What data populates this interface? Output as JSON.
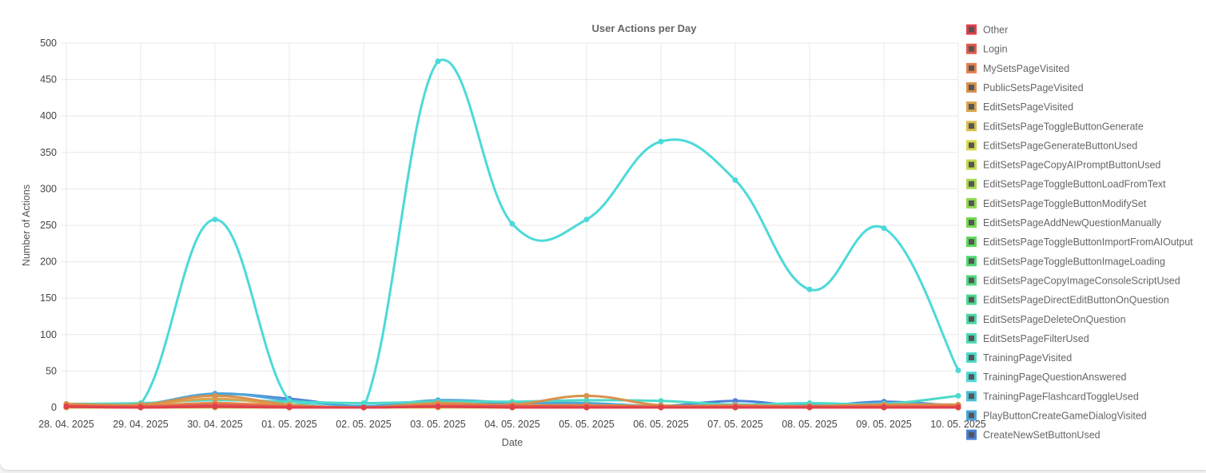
{
  "chart_data": {
    "type": "line",
    "title": "User Actions per Day",
    "xlabel": "Date",
    "ylabel": "Number of Actions",
    "ylim": [
      0,
      500
    ],
    "y_ticks": [
      0,
      50,
      100,
      150,
      200,
      250,
      300,
      350,
      400,
      450,
      500
    ],
    "grid": true,
    "legend_position": "right",
    "categories": [
      "28. 04. 2025",
      "29. 04. 2025",
      "30. 04. 2025",
      "01. 05. 2025",
      "02. 05. 2025",
      "03. 05. 2025",
      "04. 05. 2025",
      "05. 05. 2025",
      "06. 05. 2025",
      "07. 05. 2025",
      "08. 05. 2025",
      "09. 05. 2025",
      "10. 05. 2025"
    ],
    "series": [
      {
        "name": "Other",
        "color": "#e0404a",
        "values": [
          1,
          0,
          1,
          0,
          0,
          1,
          0,
          0,
          0,
          0,
          0,
          0,
          0
        ]
      },
      {
        "name": "Login",
        "color": "#e05a4a",
        "values": [
          2,
          1,
          3,
          1,
          0,
          2,
          2,
          1,
          1,
          1,
          1,
          1,
          1
        ]
      },
      {
        "name": "MySetsPageVisited",
        "color": "#e5804a",
        "values": [
          3,
          2,
          6,
          2,
          0,
          3,
          2,
          3,
          1,
          2,
          1,
          2,
          2
        ]
      },
      {
        "name": "PublicSetsPageVisited",
        "color": "#d9914d",
        "values": [
          5,
          4,
          16,
          4,
          0,
          6,
          4,
          16,
          3,
          3,
          2,
          4,
          4
        ]
      },
      {
        "name": "EditSetsPageVisited",
        "color": "#d9a34d",
        "values": [
          4,
          3,
          12,
          3,
          0,
          4,
          3,
          3,
          2,
          2,
          1,
          3,
          2
        ]
      },
      {
        "name": "EditSetsPageToggleButtonGenerate",
        "color": "#d9c04d",
        "values": [
          0,
          0,
          1,
          0,
          0,
          1,
          0,
          0,
          0,
          0,
          0,
          0,
          0
        ]
      },
      {
        "name": "EditSetsPageGenerateButtonUsed",
        "color": "#d9d94d",
        "values": [
          0,
          0,
          1,
          0,
          0,
          0,
          0,
          0,
          0,
          0,
          0,
          0,
          0
        ]
      },
      {
        "name": "EditSetsPageCopyAIPromptButtonUsed",
        "color": "#c0d94d",
        "values": [
          0,
          0,
          0,
          0,
          0,
          1,
          0,
          0,
          0,
          0,
          0,
          0,
          0
        ]
      },
      {
        "name": "EditSetsPageToggleButtonLoadFromText",
        "color": "#a8d94d",
        "values": [
          0,
          0,
          1,
          0,
          0,
          0,
          0,
          0,
          0,
          0,
          0,
          0,
          0
        ]
      },
      {
        "name": "EditSetsPageToggleButtonModifySet",
        "color": "#8fd94d",
        "values": [
          0,
          0,
          1,
          0,
          0,
          1,
          0,
          0,
          0,
          0,
          0,
          0,
          0
        ]
      },
      {
        "name": "EditSetsPageAddNewQuestionManually",
        "color": "#6fd94d",
        "values": [
          1,
          0,
          3,
          1,
          0,
          2,
          1,
          1,
          0,
          1,
          0,
          1,
          0
        ]
      },
      {
        "name": "EditSetsPageToggleButtonImportFromAIOutput",
        "color": "#5ad95a",
        "values": [
          0,
          0,
          1,
          0,
          0,
          0,
          0,
          0,
          0,
          0,
          0,
          0,
          0
        ]
      },
      {
        "name": "EditSetsPageToggleButtonImageLoading",
        "color": "#4dd96f",
        "values": [
          0,
          0,
          0,
          0,
          0,
          0,
          0,
          0,
          0,
          0,
          0,
          0,
          0
        ]
      },
      {
        "name": "EditSetsPageCopyImageConsoleScriptUsed",
        "color": "#4dd97f",
        "values": [
          0,
          0,
          0,
          0,
          0,
          0,
          0,
          0,
          0,
          0,
          0,
          0,
          0
        ]
      },
      {
        "name": "EditSetsPageDirectEditButtonOnQuestion",
        "color": "#4dd990",
        "values": [
          1,
          0,
          2,
          1,
          0,
          2,
          1,
          1,
          1,
          1,
          0,
          1,
          0
        ]
      },
      {
        "name": "EditSetsPageDeleteOnQuestion",
        "color": "#4dd9a3",
        "values": [
          0,
          0,
          1,
          0,
          0,
          1,
          0,
          0,
          0,
          0,
          0,
          0,
          0
        ]
      },
      {
        "name": "EditSetsPageFilterUsed",
        "color": "#4dd9b5",
        "values": [
          0,
          0,
          1,
          0,
          0,
          0,
          0,
          0,
          0,
          0,
          0,
          0,
          0
        ]
      },
      {
        "name": "TrainingPageVisited",
        "color": "#4dd9c8",
        "values": [
          5,
          6,
          10,
          8,
          6,
          8,
          8,
          10,
          9,
          4,
          6,
          5,
          16
        ]
      },
      {
        "name": "TrainingPageQuestionAnswered",
        "color": "#4dd9d9",
        "values": [
          4,
          5,
          258,
          9,
          0,
          475,
          252,
          258,
          365,
          312,
          162,
          246,
          51
        ]
      },
      {
        "name": "TrainingPageFlashcardToggleUsed",
        "color": "#4dbfd9",
        "values": [
          1,
          1,
          2,
          1,
          0,
          2,
          1,
          1,
          1,
          1,
          1,
          1,
          1
        ]
      },
      {
        "name": "PlayButtonCreateGameDialogVisited",
        "color": "#4da6d9",
        "values": [
          3,
          4,
          19,
          10,
          2,
          10,
          7,
          6,
          2,
          4,
          3,
          6,
          3
        ]
      },
      {
        "name": "CreateNewSetButtonUsed",
        "color": "#4d7fd9",
        "values": [
          2,
          3,
          18,
          12,
          1,
          5,
          5,
          5,
          2,
          9,
          2,
          8,
          2
        ]
      }
    ]
  }
}
